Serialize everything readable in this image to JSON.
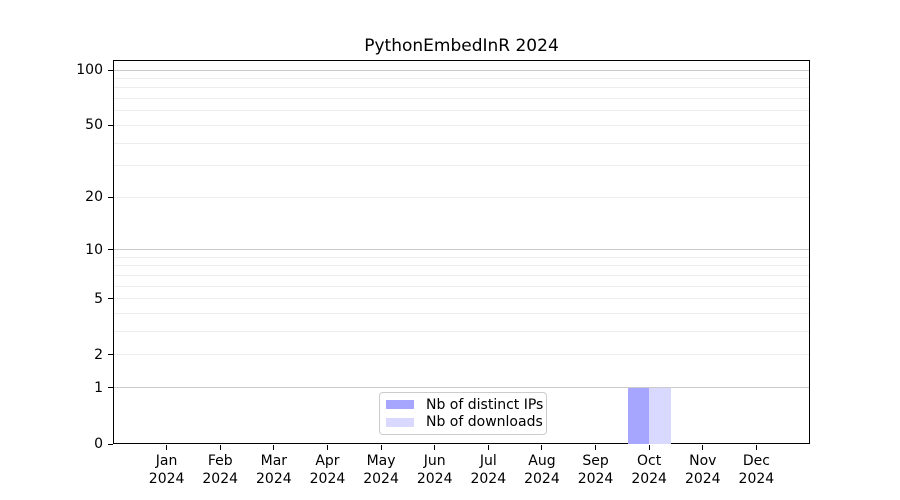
{
  "chart_data": {
    "type": "bar",
    "title": "PythonEmbedInR 2024",
    "categories": [
      "Jan",
      "Feb",
      "Mar",
      "Apr",
      "May",
      "Jun",
      "Jul",
      "Aug",
      "Sep",
      "Oct",
      "Nov",
      "Dec"
    ],
    "category_year": "2024",
    "series": [
      {
        "name": "Nb of distinct IPs",
        "color": "#a6a6ff",
        "values": [
          0,
          0,
          0,
          0,
          0,
          0,
          0,
          0,
          0,
          1,
          0,
          0
        ]
      },
      {
        "name": "Nb of downloads",
        "color": "#d9d9ff",
        "values": [
          0,
          0,
          0,
          0,
          0,
          0,
          0,
          0,
          0,
          1,
          0,
          0
        ]
      }
    ],
    "y_scale": "log1p",
    "y_ticks": [
      0,
      1,
      2,
      5,
      10,
      20,
      50,
      100
    ],
    "y_gridlines_major": [
      1,
      10,
      100
    ],
    "y_gridlines_minor": [
      2,
      3,
      4,
      5,
      6,
      7,
      8,
      9,
      20,
      30,
      40,
      50,
      60,
      70,
      80,
      90
    ],
    "ylim": [
      0,
      114
    ],
    "grid": true,
    "legend_position": "lower center"
  },
  "colors": {
    "background": "#ffffff",
    "axis": "#000000",
    "grid_major": "#cccccc",
    "grid_minor": "#ededed",
    "legend_border": "#cccccc",
    "text": "#000000"
  }
}
